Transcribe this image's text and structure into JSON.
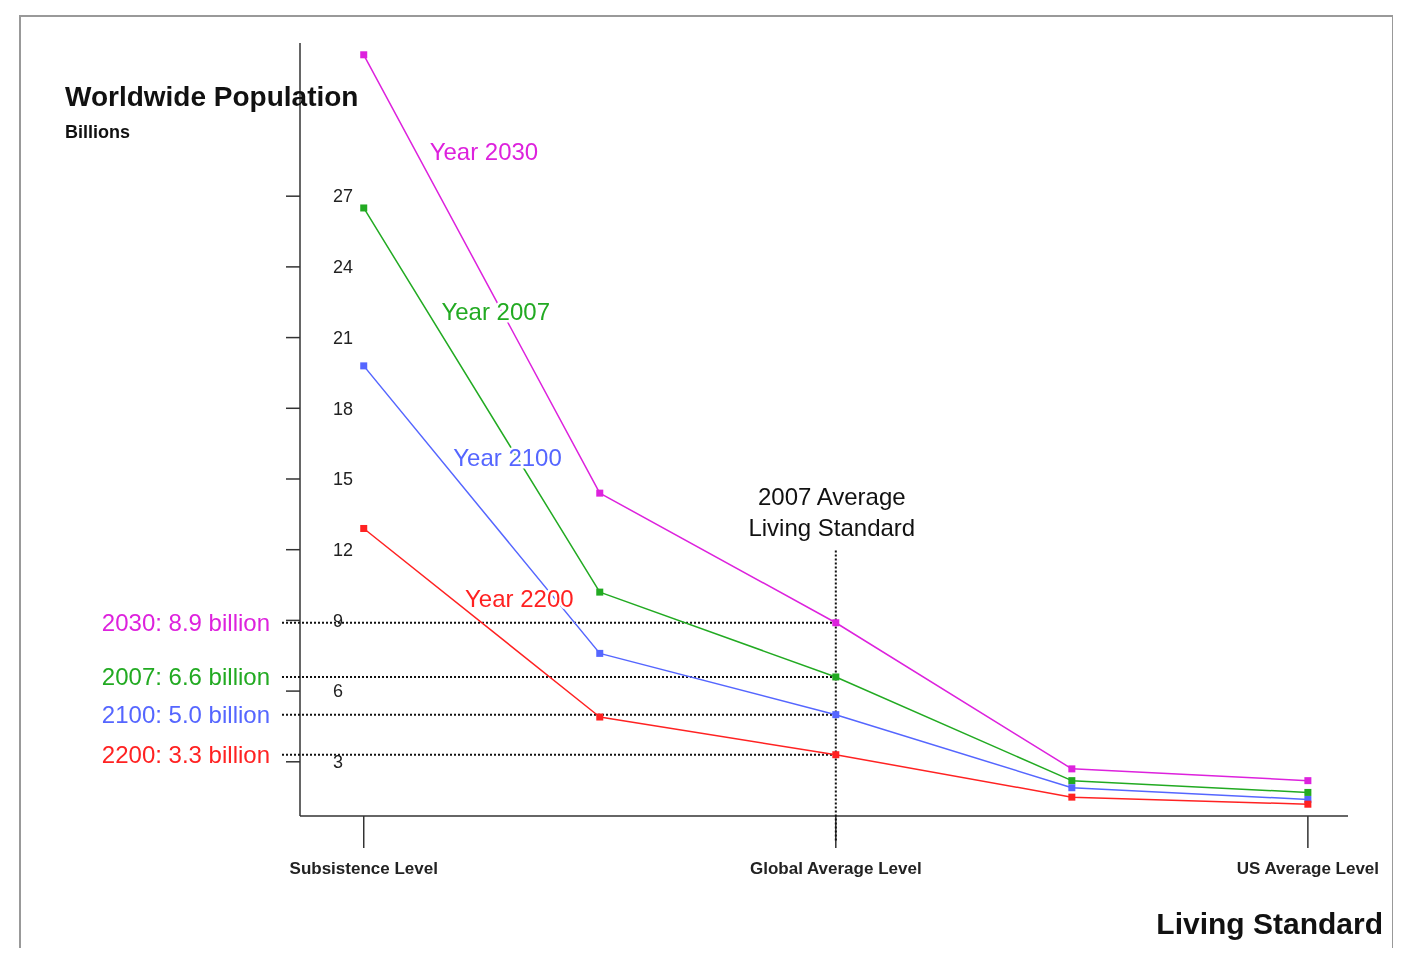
{
  "chart_data": {
    "type": "line",
    "title": "Worldwide Population",
    "annotations": [
      "Billions"
    ],
    "xlabel": "Living Standard",
    "categories": [
      "Subsistence Level",
      null,
      "Global Average Level",
      null,
      "US Average Level"
    ],
    "ylim": [
      0.7,
      33.5
    ],
    "yticks": [
      3,
      6,
      9,
      12,
      15,
      18,
      21,
      24,
      27
    ],
    "series": [
      {
        "name": "Year 2030",
        "color": "#dd22dd",
        "values": [
          33,
          14.4,
          8.9,
          2.7,
          2.2
        ]
      },
      {
        "name": "Year 2007",
        "color": "#22aa22",
        "values": [
          26.5,
          10.2,
          6.6,
          2.2,
          1.7
        ]
      },
      {
        "name": "Year 2100",
        "color": "#5566ff",
        "values": [
          19.8,
          7.6,
          5.0,
          1.9,
          1.4
        ]
      },
      {
        "name": "Year 2200",
        "color": "#ff2222",
        "values": [
          12.9,
          4.9,
          3.3,
          1.5,
          1.2
        ]
      }
    ],
    "ref_lines": [
      {
        "axis": "y",
        "value": 8.9,
        "label": "2030: 8.9 billion",
        "line_style": "dotted"
      },
      {
        "axis": "y",
        "value": 6.6,
        "label": "2007: 6.6 billion",
        "line_style": "dotted"
      },
      {
        "axis": "y",
        "value": 5.0,
        "label": "2100: 5.0 billion",
        "line_style": "dotted"
      },
      {
        "axis": "y",
        "value": 3.3,
        "label": "2200: 3.3 billion",
        "line_style": "dotted"
      },
      {
        "axis": "x",
        "value": "Global Average Level",
        "label": "2007 Average\nLiving Standard",
        "line_style": "dotted"
      }
    ],
    "marker": "square",
    "line_style": "solid",
    "grid": false,
    "legend": false
  }
}
